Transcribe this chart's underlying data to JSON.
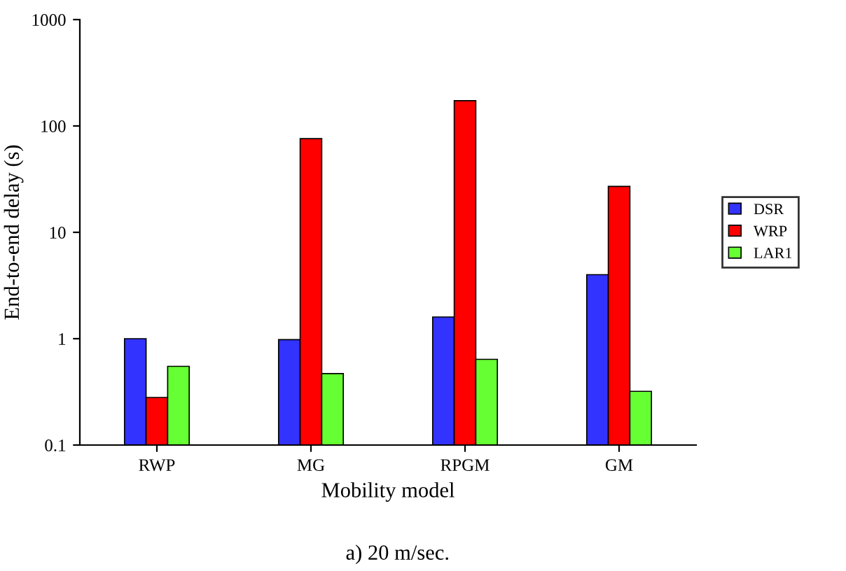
{
  "chart_data": {
    "type": "bar",
    "xlabel": "Mobility model",
    "ylabel": "End-to-end delay (s)",
    "categories": [
      "RWP",
      "MG",
      "RPGM",
      "GM"
    ],
    "series": [
      {
        "name": "DSR",
        "color": "#3333ff",
        "values": [
          1.0,
          0.98,
          1.6,
          4.0
        ]
      },
      {
        "name": "WRP",
        "color": "#ff0000",
        "values": [
          0.28,
          76,
          173,
          27
        ]
      },
      {
        "name": "LAR1",
        "color": "#66ff33",
        "values": [
          0.55,
          0.47,
          0.64,
          0.32
        ]
      }
    ],
    "log": "y",
    "ylim": [
      0.1,
      1000
    ],
    "yticks": [
      0.1,
      1,
      10,
      100,
      1000
    ],
    "grid": false,
    "legend": "right",
    "annotations": [
      "a) 20 m/sec."
    ]
  }
}
